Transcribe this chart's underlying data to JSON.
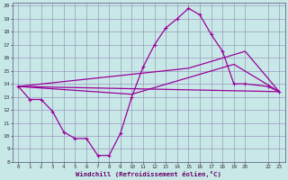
{
  "xlabel": "Windchill (Refroidissement éolien,°C)",
  "bg_color": "#c8e8e8",
  "grid_color": "#9999bb",
  "line_color": "#990099",
  "xlim": [
    -0.5,
    23.5
  ],
  "ylim": [
    8,
    20.2
  ],
  "xticks": [
    0,
    1,
    2,
    3,
    4,
    5,
    6,
    7,
    8,
    9,
    10,
    11,
    12,
    13,
    14,
    15,
    16,
    17,
    18,
    19,
    20,
    22,
    23
  ],
  "yticks": [
    8,
    9,
    10,
    11,
    12,
    13,
    14,
    15,
    16,
    17,
    18,
    19,
    20
  ],
  "line1_x": [
    0,
    1,
    2,
    3,
    4,
    5,
    6,
    7,
    8,
    9,
    10,
    11,
    12,
    13,
    14,
    15,
    16,
    17,
    18,
    19,
    20,
    22,
    23
  ],
  "line1_y": [
    13.8,
    12.8,
    12.8,
    11.9,
    10.3,
    9.8,
    9.8,
    8.5,
    8.5,
    10.2,
    13.0,
    15.3,
    17.0,
    18.3,
    19.0,
    19.8,
    19.3,
    17.8,
    16.5,
    14.0,
    14.0,
    13.8,
    13.4
  ],
  "line2_x": [
    0,
    23
  ],
  "line2_y": [
    13.8,
    13.4
  ],
  "line3_x": [
    0,
    15,
    20,
    23
  ],
  "line3_y": [
    13.8,
    15.2,
    16.5,
    13.4
  ],
  "line4_x": [
    0,
    10,
    19,
    23
  ],
  "line4_y": [
    13.8,
    13.2,
    15.5,
    13.4
  ]
}
